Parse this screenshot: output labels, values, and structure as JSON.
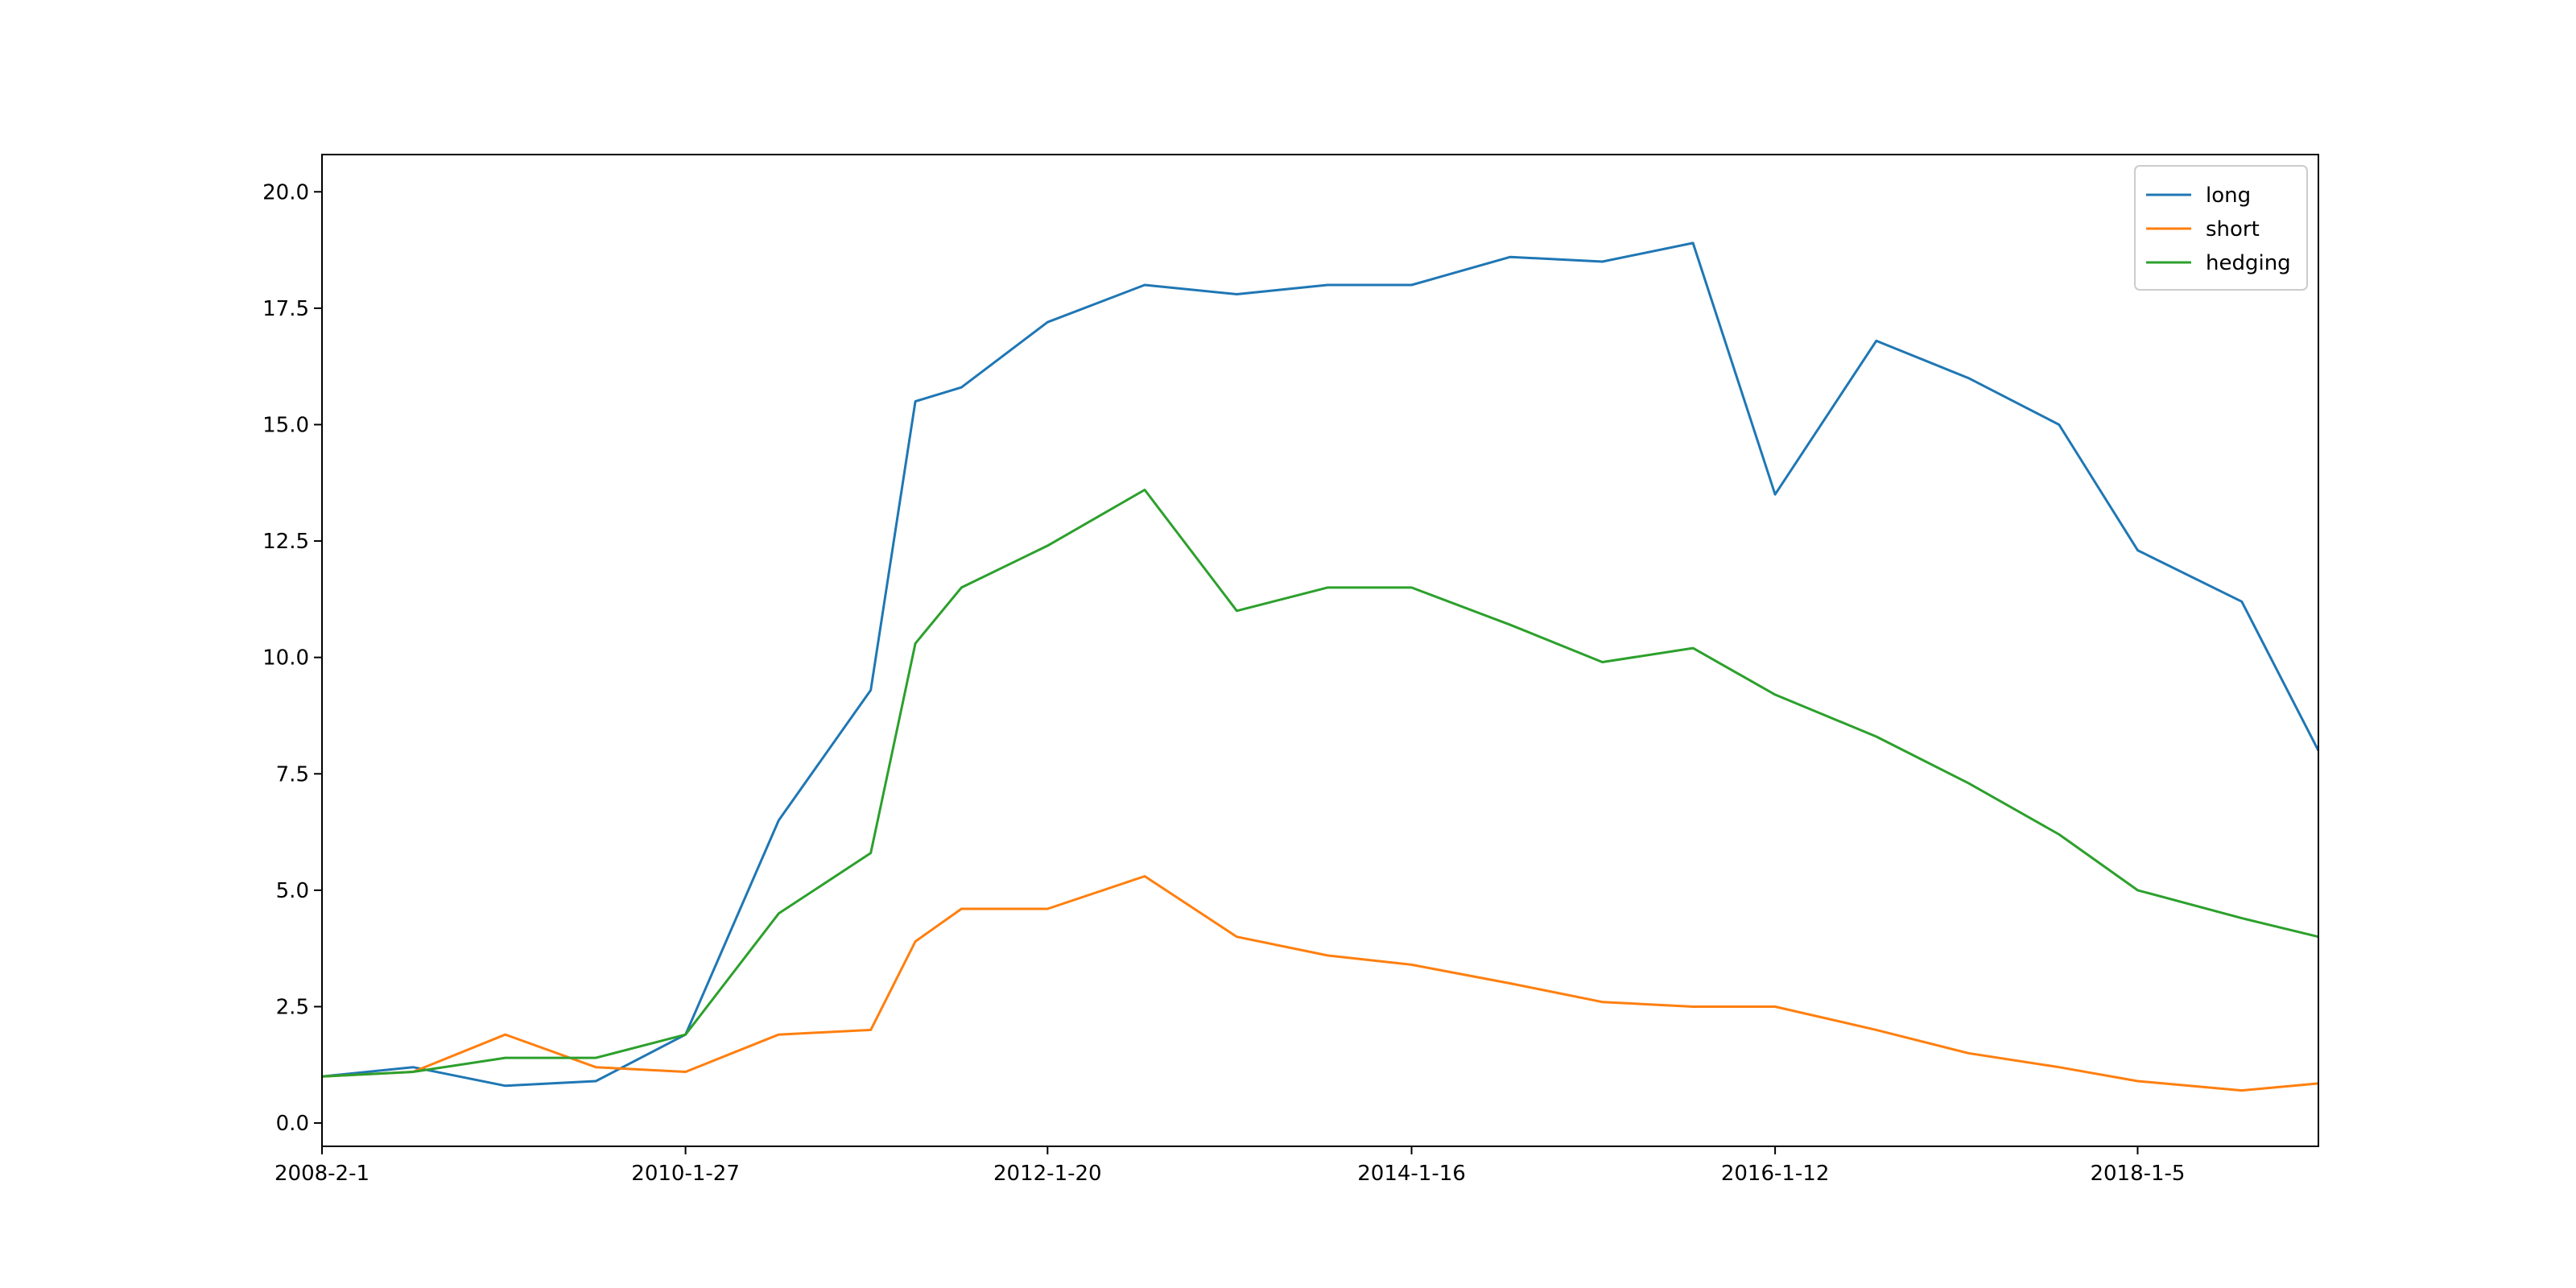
{
  "chart_data": {
    "type": "line",
    "title": "",
    "xlabel": "",
    "ylabel": "",
    "x_tick_labels": [
      "2008-2-1",
      "2010-1-27",
      "2012-1-20",
      "2014-1-16",
      "2016-1-12",
      "2018-1-5"
    ],
    "x": [
      "2008-2-1",
      "2008-8-1",
      "2009-2-1",
      "2009-8-1",
      "2010-1-27",
      "2010-8-1",
      "2011-2-1",
      "2011-5-1",
      "2011-8-1",
      "2012-1-20",
      "2012-8-1",
      "2013-2-1",
      "2013-8-1",
      "2014-1-16",
      "2014-8-1",
      "2015-2-1",
      "2015-8-1",
      "2016-1-12",
      "2016-8-1",
      "2017-2-1",
      "2017-8-1",
      "2018-1-5",
      "2018-8-1",
      "2019-1-1"
    ],
    "series": [
      {
        "name": "long",
        "color": "#1f77b4",
        "values": [
          1.0,
          1.2,
          0.8,
          0.9,
          1.9,
          6.5,
          9.3,
          15.5,
          15.8,
          17.2,
          18.0,
          17.8,
          18.0,
          18.0,
          18.6,
          18.5,
          18.9,
          13.5,
          16.8,
          16.0,
          15.0,
          12.3,
          11.2,
          8.0
        ]
      },
      {
        "name": "short",
        "color": "#ff7f0e",
        "values": [
          1.0,
          1.1,
          1.9,
          1.2,
          1.1,
          1.9,
          2.0,
          3.9,
          4.6,
          4.6,
          5.3,
          4.0,
          3.6,
          3.4,
          3.0,
          2.6,
          2.5,
          2.5,
          2.0,
          1.5,
          1.2,
          0.9,
          0.7,
          0.85
        ]
      },
      {
        "name": "hedging",
        "color": "#2ca02c",
        "values": [
          1.0,
          1.1,
          1.4,
          1.4,
          1.9,
          4.5,
          5.8,
          10.3,
          11.5,
          12.4,
          13.6,
          11.0,
          11.5,
          11.5,
          10.7,
          9.9,
          10.2,
          9.2,
          8.3,
          7.3,
          6.2,
          5.0,
          4.4,
          4.0
        ]
      }
    ],
    "xlim": [
      "2008-2-1",
      "2019-1-1"
    ],
    "ylim": [
      -0.5,
      20.8
    ],
    "y_ticks": [
      0.0,
      2.5,
      5.0,
      7.5,
      10.0,
      12.5,
      15.0,
      17.5,
      20.0
    ],
    "y_tick_labels": [
      "0.0",
      "2.5",
      "5.0",
      "7.5",
      "10.0",
      "12.5",
      "15.0",
      "17.5",
      "20.0"
    ],
    "grid": false,
    "legend_position": "top-right"
  }
}
